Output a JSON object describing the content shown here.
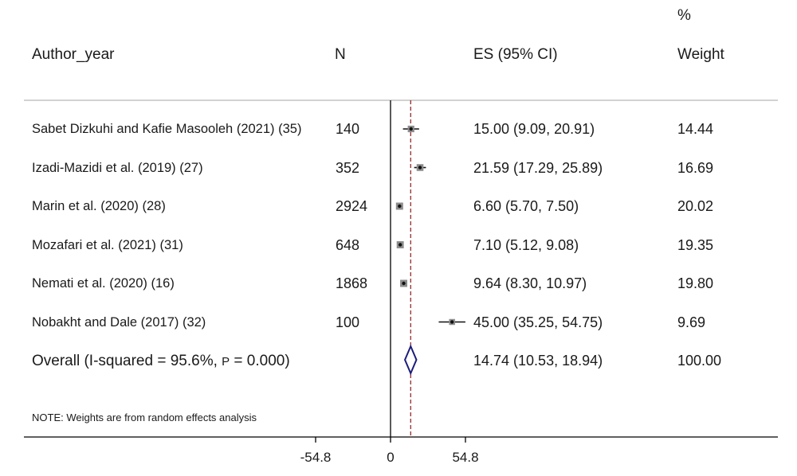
{
  "chart_data": {
    "type": "forest",
    "columns": {
      "pct_label": "%",
      "author": "Author_year",
      "n": "N",
      "es": "ES (95% CI)",
      "weight": "Weight"
    },
    "studies": [
      {
        "label": "Sabet Dizkuhi and Kafie Masooleh (2021) (35)",
        "n": "140",
        "es": 15.0,
        "lo": 9.09,
        "hi": 20.91,
        "es_text": "15.00 (9.09, 20.91)",
        "weight": "14.44"
      },
      {
        "label": "Izadi-Mazidi et al. (2019) (27)",
        "n": "352",
        "es": 21.59,
        "lo": 17.29,
        "hi": 25.89,
        "es_text": "21.59 (17.29, 25.89)",
        "weight": "16.69"
      },
      {
        "label": "Marin et al. (2020) (28)",
        "n": "2924",
        "es": 6.6,
        "lo": 5.7,
        "hi": 7.5,
        "es_text": "6.60 (5.70, 7.50)",
        "weight": "20.02"
      },
      {
        "label": "Mozafari et al. (2021) (31)",
        "n": "648",
        "es": 7.1,
        "lo": 5.12,
        "hi": 9.08,
        "es_text": "7.10 (5.12, 9.08)",
        "weight": "19.35"
      },
      {
        "label": "Nemati et al. (2020) (16)",
        "n": "1868",
        "es": 9.64,
        "lo": 8.3,
        "hi": 10.97,
        "es_text": "9.64 (8.30, 10.97)",
        "weight": "19.80"
      },
      {
        "label": "Nobakht and Dale (2017) (32)",
        "n": "100",
        "es": 45.0,
        "lo": 35.25,
        "hi": 54.75,
        "es_text": "45.00 (35.25, 54.75)",
        "weight": "9.69"
      }
    ],
    "overall": {
      "label": "Overall  (I-squared = 95.6%, ",
      "p_label": "P",
      "p_text": " = 0.000)",
      "es": 14.74,
      "lo": 10.53,
      "hi": 18.94,
      "es_text": "14.74 (10.53, 18.94)",
      "weight": "100.00"
    },
    "note": "NOTE: Weights are from random effects analysis",
    "x_ticks": [
      -54.8,
      0,
      54.8
    ],
    "x_tick_labels": [
      "-54.8",
      "0",
      "54.8"
    ],
    "xlim": [
      -54.8,
      54.8
    ],
    "null_line": 0,
    "colors": {
      "text": "#1a1a1a",
      "reference_line": "#8b1a1a",
      "diamond": "#1c1c7a",
      "box": "#8c8c8c",
      "axis": "#000000"
    }
  }
}
